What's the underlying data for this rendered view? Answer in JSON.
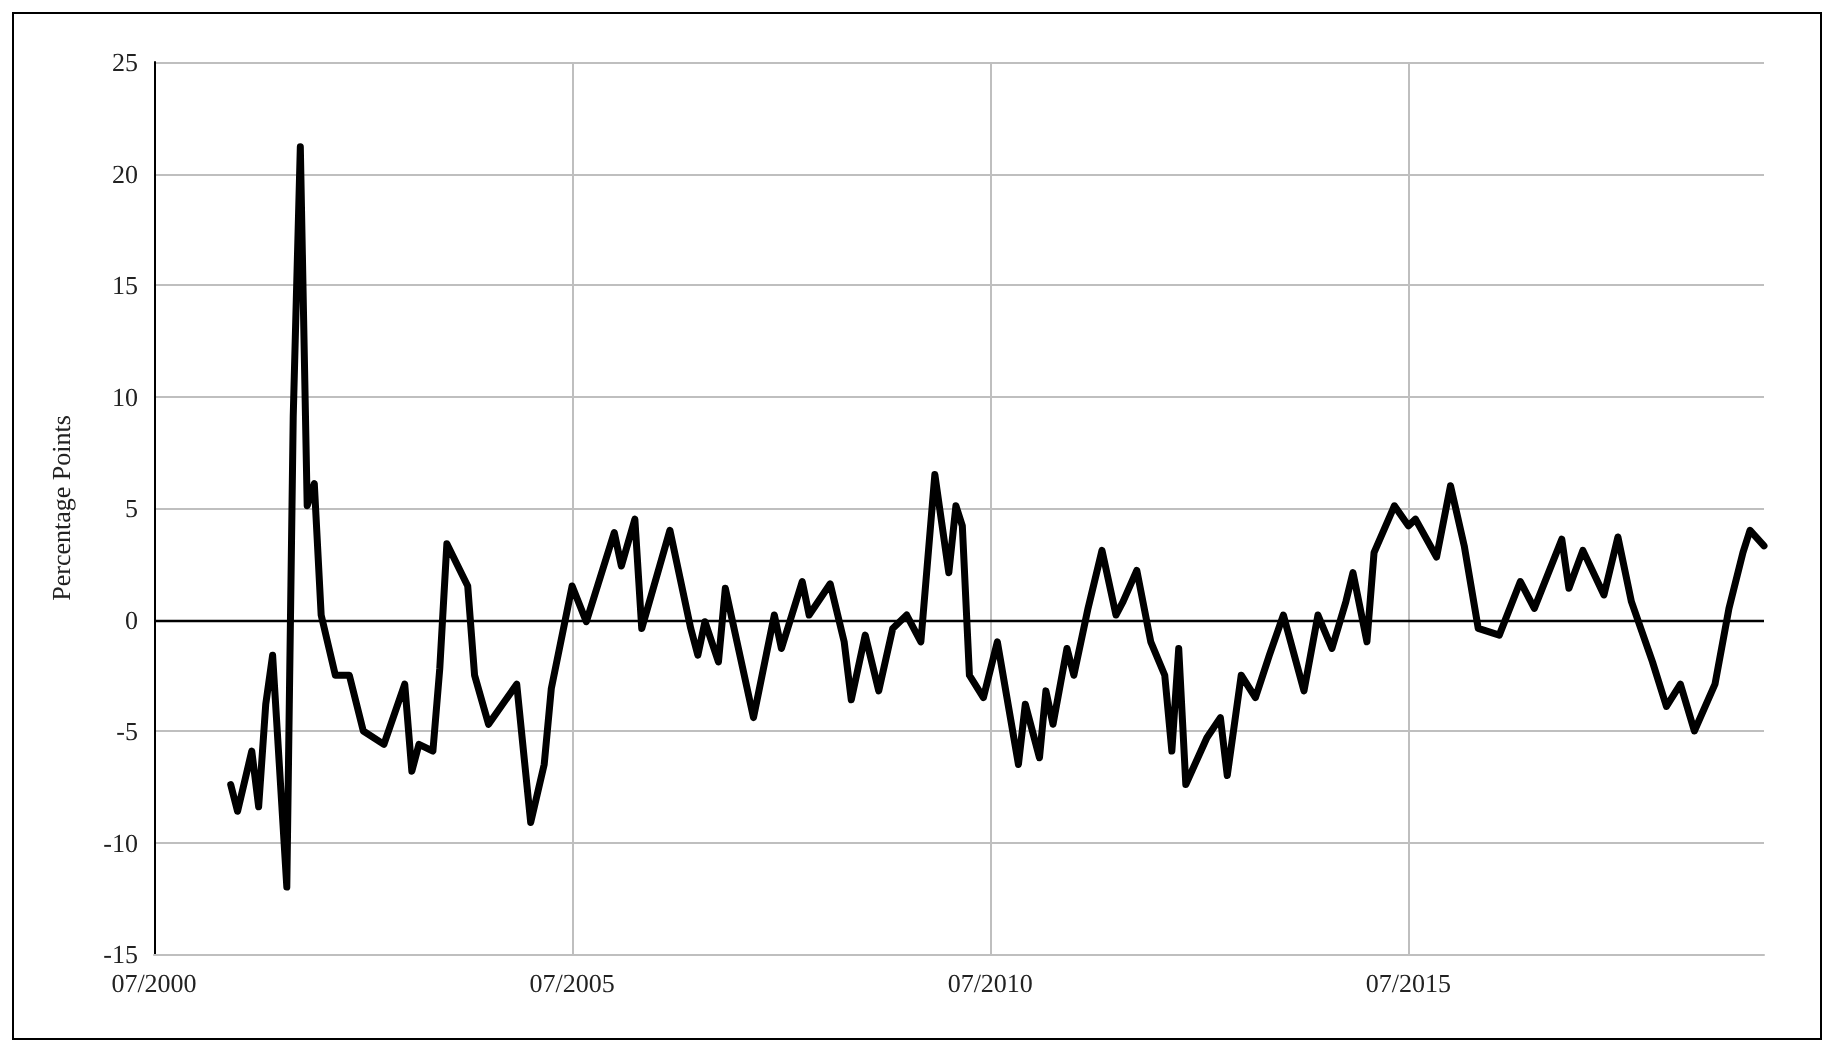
{
  "chart_data": {
    "type": "line",
    "ylabel": "Percentage Points",
    "x": [
      "2001-06",
      "2001-07",
      "2001-09",
      "2001-10",
      "2001-11",
      "2001-12",
      "2002-02",
      "2002-03",
      "2002-04",
      "2002-05",
      "2002-06",
      "2002-07",
      "2002-09",
      "2002-11",
      "2003-01",
      "2003-04",
      "2003-07",
      "2003-08",
      "2003-09",
      "2003-11",
      "2003-12",
      "2004-01",
      "2004-04",
      "2004-05",
      "2004-07",
      "2004-11",
      "2005-01",
      "2005-03",
      "2005-04",
      "2005-07",
      "2005-09",
      "2006-01",
      "2006-02",
      "2006-04",
      "2006-05",
      "2006-09",
      "2006-12",
      "2007-01",
      "2007-02",
      "2007-04",
      "2007-05",
      "2007-09",
      "2007-12",
      "2008-01",
      "2008-04",
      "2008-05",
      "2008-08",
      "2008-10",
      "2008-11",
      "2009-01",
      "2009-03",
      "2009-05",
      "2009-07",
      "2009-09",
      "2009-11",
      "2010-01",
      "2010-02",
      "2010-03",
      "2010-04",
      "2010-06",
      "2010-08",
      "2010-11",
      "2010-12",
      "2011-02",
      "2011-03",
      "2011-04",
      "2011-06",
      "2011-07",
      "2011-09",
      "2011-11",
      "2012-01",
      "2012-02",
      "2012-04",
      "2012-06",
      "2012-08",
      "2012-09",
      "2012-10",
      "2012-11",
      "2013-02",
      "2013-04",
      "2013-05",
      "2013-07",
      "2013-09",
      "2013-11",
      "2014-01",
      "2014-04",
      "2014-06",
      "2014-08",
      "2014-10",
      "2014-11",
      "2015-01",
      "2015-02",
      "2015-05",
      "2015-07",
      "2015-08",
      "2015-11",
      "2016-01",
      "2016-03",
      "2016-05",
      "2016-08",
      "2016-11",
      "2017-01",
      "2017-05",
      "2017-06",
      "2017-08",
      "2017-11",
      "2018-01",
      "2018-03",
      "2018-06",
      "2018-08",
      "2018-10",
      "2018-12",
      "2019-03",
      "2019-05",
      "2019-07",
      "2019-08",
      "2019-10"
    ],
    "series": [
      {
        "color": "#000000",
        "values": [
          -7.4,
          -8.6,
          -5.9,
          -8.4,
          -3.8,
          -1.6,
          -12.0,
          9.1,
          21.2,
          5.1,
          6.1,
          0.2,
          -2.5,
          -2.5,
          -5.0,
          -5.6,
          -2.9,
          -6.8,
          -5.6,
          -5.9,
          -2.2,
          3.4,
          1.5,
          -2.5,
          -4.7,
          -2.9,
          -9.1,
          -6.5,
          -3.1,
          1.5,
          -0.1,
          3.9,
          2.4,
          4.5,
          -0.4,
          4.0,
          -0.4,
          -1.6,
          -0.1,
          -1.9,
          1.4,
          -4.4,
          0.2,
          -1.3,
          1.7,
          0.2,
          1.6,
          -1.0,
          -3.6,
          -0.7,
          -3.2,
          -0.4,
          0.2,
          -1.0,
          6.5,
          2.1,
          5.1,
          4.2,
          -2.5,
          -3.5,
          -1.0,
          -6.5,
          -3.8,
          -6.2,
          -3.2,
          -4.7,
          -1.3,
          -2.5,
          0.5,
          3.1,
          0.2,
          0.8,
          2.2,
          -1.0,
          -2.5,
          -5.9,
          -1.3,
          -7.4,
          -5.3,
          -4.4,
          -7.0,
          -2.5,
          -3.5,
          -1.6,
          0.2,
          -3.2,
          0.2,
          -1.3,
          0.8,
          2.1,
          -1.0,
          3.0,
          5.1,
          4.2,
          4.5,
          2.8,
          6.0,
          3.3,
          -0.4,
          -0.7,
          1.7,
          0.5,
          3.6,
          1.4,
          3.1,
          1.1,
          3.7,
          0.8,
          -1.9,
          -3.9,
          -2.9,
          -5.0,
          -2.9,
          0.5,
          3.0,
          4.0,
          3.3
        ]
      }
    ],
    "xlim": [
      "2000-07",
      "2019-10"
    ],
    "xticks": [
      {
        "value": "2000-07",
        "label": "07/2000"
      },
      {
        "value": "2005-07",
        "label": "07/2005"
      },
      {
        "value": "2010-07",
        "label": "07/2010"
      },
      {
        "value": "2015-07",
        "label": "07/2015"
      }
    ],
    "ylim": [
      -15,
      25
    ],
    "yticks": [
      -15,
      -10,
      -5,
      0,
      5,
      10,
      15,
      20,
      25
    ],
    "ref_lines": [
      {
        "axis": "y",
        "value": 0,
        "color": "#000000"
      }
    ],
    "grid": true,
    "marker": "none",
    "line_style": "solid"
  }
}
